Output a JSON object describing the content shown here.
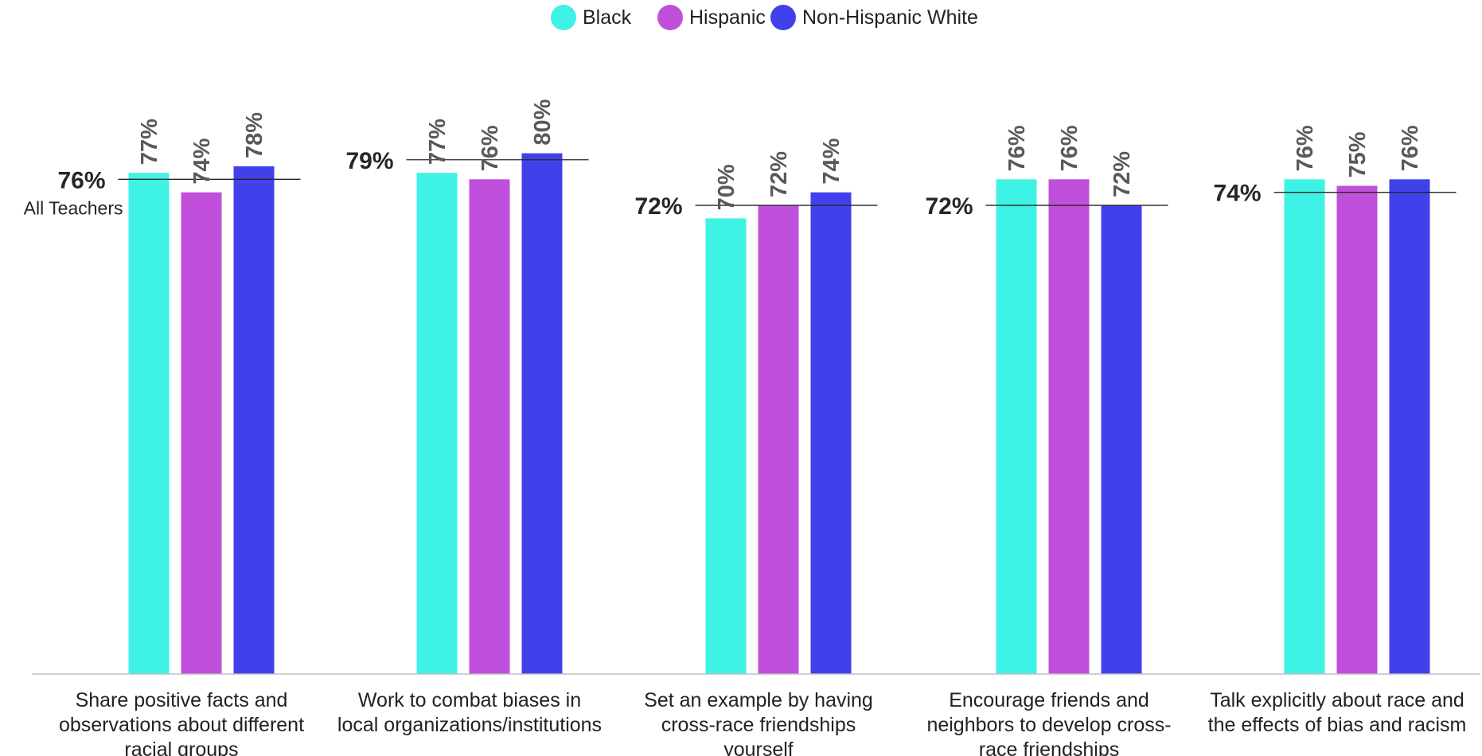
{
  "chart_data": {
    "type": "bar",
    "title": "",
    "xlabel": "",
    "ylabel": "",
    "ylim": [
      0,
      100
    ],
    "grid": false,
    "legend": {
      "placement": "top-center",
      "entries": [
        {
          "name": "Black",
          "color": "#3ef2e6"
        },
        {
          "name": "Hispanic",
          "color": "#c04fdb"
        },
        {
          "name": "Non-Hispanic White",
          "color": "#4141eb"
        }
      ]
    },
    "categories": [
      [
        "Share positive facts and",
        "observations about different",
        "racial groups"
      ],
      [
        "Work to combat biases in",
        "local organizations/institutions"
      ],
      [
        "Set an example by having",
        "cross-race friendships",
        "yourself"
      ],
      [
        "Encourage friends and",
        "neighbors to develop cross-",
        "race friendships"
      ],
      [
        "Talk explicitly about race and",
        "the effects of bias and racism"
      ]
    ],
    "series": [
      {
        "name": "Black",
        "color": "#3ef2e6",
        "values": [
          77,
          77,
          70,
          76,
          76
        ]
      },
      {
        "name": "Hispanic",
        "color": "#c04fdb",
        "values": [
          74,
          76,
          72,
          76,
          75
        ]
      },
      {
        "name": "Non-Hispanic White",
        "color": "#4141eb",
        "values": [
          78,
          80,
          74,
          72,
          76
        ]
      }
    ],
    "reference": {
      "name": "All Teachers",
      "values": [
        76,
        79,
        72,
        72,
        74
      ]
    },
    "value_suffix": "%"
  }
}
